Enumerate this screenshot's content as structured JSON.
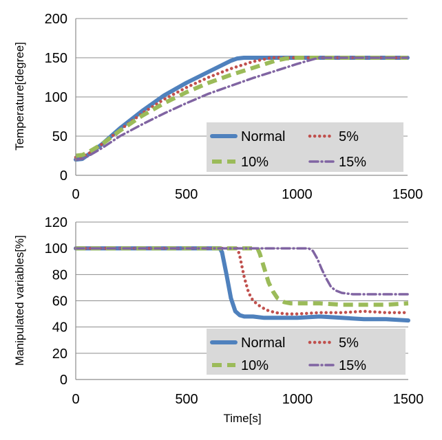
{
  "chart_data": [
    {
      "type": "line",
      "title": "",
      "xlabel": "",
      "ylabel": "Temperature[degree]",
      "xlim": [
        0,
        1500
      ],
      "ylim": [
        0,
        200
      ],
      "xticks": [
        "0",
        "500",
        "1000",
        "1500"
      ],
      "yticks": [
        "0",
        "50",
        "100",
        "150",
        "200"
      ],
      "legend": {
        "position": "bottom-right"
      },
      "series": [
        {
          "name": "Normal",
          "color": "#4f81bd",
          "style": "solid",
          "x": [
            0,
            30,
            60,
            120,
            200,
            300,
            400,
            500,
            600,
            700,
            730,
            760,
            800,
            1000,
            1200,
            1500
          ],
          "y": [
            20,
            21,
            27,
            40,
            60,
            82,
            102,
            118,
            132,
            146,
            149,
            150,
            150,
            150,
            150,
            150
          ]
        },
        {
          "name": "5%",
          "color": "#c0504d",
          "style": "dotted",
          "x": [
            0,
            30,
            60,
            120,
            200,
            300,
            400,
            500,
            600,
            700,
            800,
            850,
            880,
            1000,
            1200,
            1500
          ],
          "y": [
            23,
            24,
            28,
            40,
            58,
            79,
            97,
            112,
            125,
            136,
            145,
            148,
            150,
            150,
            150,
            150
          ]
        },
        {
          "name": "10%",
          "color": "#9bbb59",
          "style": "dashed",
          "x": [
            0,
            30,
            60,
            120,
            200,
            300,
            400,
            500,
            600,
            700,
            800,
            900,
            950,
            1000,
            1200,
            1500
          ],
          "y": [
            25,
            26,
            30,
            40,
            57,
            76,
            92,
            106,
            118,
            128,
            137,
            146,
            149,
            150,
            150,
            150
          ]
        },
        {
          "name": "15%",
          "color": "#8064a2",
          "style": "dashdot",
          "x": [
            0,
            30,
            60,
            120,
            200,
            300,
            400,
            500,
            600,
            700,
            800,
            900,
            1000,
            1060,
            1100,
            1200,
            1500
          ],
          "y": [
            20,
            21,
            25,
            35,
            50,
            65,
            79,
            92,
            104,
            114,
            124,
            133,
            142,
            147,
            150,
            150,
            150
          ]
        }
      ]
    },
    {
      "type": "line",
      "title": "",
      "xlabel": "Time[s]",
      "ylabel": "Manipulated variables[%]",
      "xlim": [
        0,
        1500
      ],
      "ylim": [
        0,
        120
      ],
      "xticks": [
        "0",
        "500",
        "1000",
        "1500"
      ],
      "yticks": [
        "0",
        "20",
        "40",
        "60",
        "80",
        "100",
        "120"
      ],
      "legend": {
        "position": "bottom-right"
      },
      "series": [
        {
          "name": "Normal",
          "color": "#4f81bd",
          "style": "solid",
          "x": [
            0,
            650,
            660,
            680,
            700,
            720,
            740,
            760,
            800,
            850,
            900,
            1000,
            1100,
            1200,
            1300,
            1400,
            1500
          ],
          "y": [
            100,
            100,
            97,
            80,
            62,
            52,
            49,
            48,
            48,
            47,
            47,
            47,
            48,
            47,
            46,
            46,
            45
          ]
        },
        {
          "name": "5%",
          "color": "#c0504d",
          "style": "dotted",
          "x": [
            0,
            730,
            740,
            760,
            780,
            800,
            830,
            860,
            900,
            950,
            1000,
            1100,
            1200,
            1300,
            1400,
            1500
          ],
          "y": [
            100,
            100,
            94,
            78,
            66,
            60,
            56,
            53,
            51,
            50,
            50,
            51,
            51,
            52,
            51,
            51
          ]
        },
        {
          "name": "10%",
          "color": "#9bbb59",
          "style": "dashed",
          "x": [
            0,
            820,
            830,
            850,
            870,
            890,
            910,
            940,
            970,
            1000,
            1100,
            1200,
            1300,
            1400,
            1500
          ],
          "y": [
            100,
            100,
            96,
            85,
            74,
            67,
            62,
            59,
            58,
            58,
            58,
            57,
            57,
            57,
            58
          ]
        },
        {
          "name": "15%",
          "color": "#8064a2",
          "style": "dashdot",
          "x": [
            0,
            1050,
            1070,
            1090,
            1110,
            1130,
            1150,
            1170,
            1200,
            1250,
            1300,
            1400,
            1500
          ],
          "y": [
            100,
            100,
            98,
            92,
            84,
            77,
            71,
            68,
            66,
            65,
            65,
            65,
            65
          ]
        }
      ]
    }
  ]
}
